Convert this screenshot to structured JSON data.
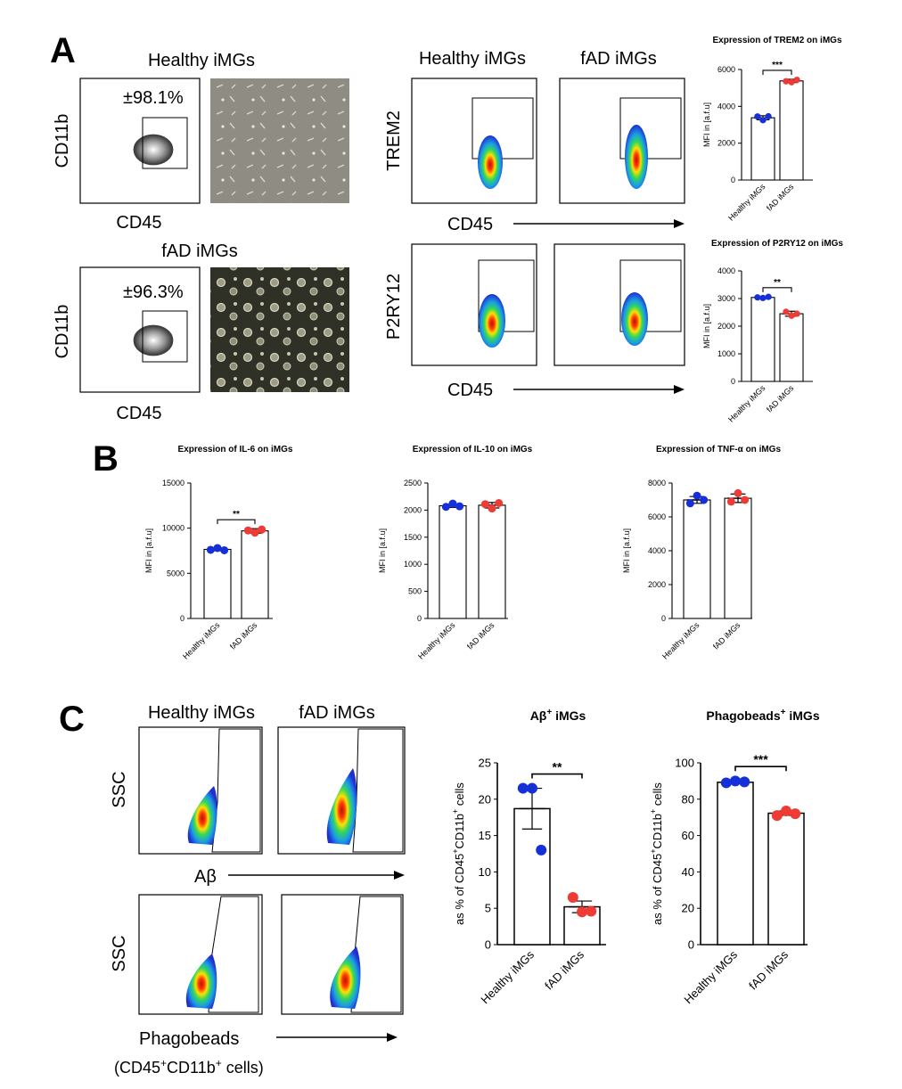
{
  "panels": {
    "a": "A",
    "b": "B",
    "c": "C"
  },
  "colors": {
    "healthy": "#1530d8",
    "fad": "#ee3b35"
  },
  "images": {
    "healthy_micrograph": "microscopy-healthy",
    "fad_micrograph": "microscopy-fad"
  },
  "panel_a": {
    "healthy_title": "Healthy iMGs",
    "fad_title": "fAD iMGs",
    "cd11b_label": "CD11b",
    "cd45_label": "CD45",
    "healthy_gate_pct": "±98.1%",
    "fad_gate_pct": "±96.3%",
    "flow_col_healthy": "Healthy iMGs",
    "flow_col_fad": "fAD iMGs",
    "trem2_label": "TREM2",
    "p2ry12_label": "P2RY12",
    "cd45_arrow_label_1": "CD45",
    "cd45_arrow_label_2": "CD45"
  },
  "panel_c": {
    "healthy_title": "Healthy iMGs",
    "fad_title": "fAD iMGs",
    "ssc_label_1": "SSC",
    "ssc_label_2": "SSC",
    "abeta_label": "Aβ",
    "phago_label": "Phagobeads",
    "gate_note": "(CD45+CD11b+ cells)"
  },
  "chart_data": [
    {
      "id": "trem2",
      "type": "bar",
      "title": "Expression of TREM2 on iMGs",
      "ylabel": "MFI in [a.f.u]",
      "categories": [
        "Healthy iMGs",
        "fAD iMGs"
      ],
      "values": [
        3380,
        5380
      ],
      "errors": [
        110,
        90
      ],
      "points": [
        [
          3450,
          3250,
          3460
        ],
        [
          5360,
          5310,
          5440
        ]
      ],
      "ylim": [
        0,
        6000
      ],
      "yticks": [
        "0",
        "2000",
        "4000",
        "6000"
      ],
      "significance": "***"
    },
    {
      "id": "p2ry12",
      "type": "bar",
      "title": "Expression of P2RY12 on iMGs",
      "ylabel": "MFI in [a.f.u]",
      "categories": [
        "Healthy iMGs",
        "fAD iMGs"
      ],
      "values": [
        3040,
        2450
      ],
      "errors": [
        30,
        90
      ],
      "points": [
        [
          3040,
          3020,
          3060
        ],
        [
          2520,
          2380,
          2450
        ]
      ],
      "ylim": [
        0,
        4000
      ],
      "yticks": [
        "0",
        "1000",
        "2000",
        "3000",
        "4000"
      ],
      "significance": "**"
    },
    {
      "id": "il6",
      "type": "bar",
      "title": "Expression of IL-6 on iMGs",
      "ylabel": "MFI in [a.f.u]",
      "categories": [
        "Healthy iMGs",
        "fAD iMGs"
      ],
      "values": [
        7650,
        9700
      ],
      "errors": [
        150,
        250
      ],
      "points": [
        [
          7600,
          7800,
          7550
        ],
        [
          9750,
          9500,
          9850
        ]
      ],
      "ylim": [
        0,
        15000
      ],
      "yticks": [
        "0",
        "5000",
        "10000",
        "15000"
      ],
      "significance": "**"
    },
    {
      "id": "il10",
      "type": "bar",
      "title": "Expression of IL-10 on iMGs",
      "ylabel": "MFI in [a.f.u]",
      "categories": [
        "Healthy iMGs",
        "fAD iMGs"
      ],
      "values": [
        2080,
        2090
      ],
      "errors": [
        30,
        50
      ],
      "points": [
        [
          2060,
          2120,
          2070
        ],
        [
          2110,
          2030,
          2130
        ]
      ],
      "ylim": [
        0,
        2500
      ],
      "yticks": [
        "0",
        "500",
        "1000",
        "1500",
        "2000",
        "2500"
      ],
      "significance": ""
    },
    {
      "id": "tnfa",
      "type": "bar",
      "title": "Expression of TNF-α on iMGs",
      "ylabel": "MFI in [a.f.u]",
      "categories": [
        "Healthy iMGs",
        "fAD iMGs"
      ],
      "values": [
        7000,
        7100
      ],
      "errors": [
        200,
        250
      ],
      "points": [
        [
          6800,
          7250,
          7000
        ],
        [
          6900,
          7400,
          7000
        ]
      ],
      "ylim": [
        0,
        8000
      ],
      "yticks": [
        "0",
        "2000",
        "4000",
        "6000",
        "8000"
      ],
      "significance": ""
    },
    {
      "id": "abeta",
      "type": "bar",
      "title": "Aβ+ iMGs",
      "ylabel": "as % of CD45+CD11b+ cells",
      "categories": [
        "Healthy iMGs",
        "fAD iMGs"
      ],
      "values": [
        18.7,
        5.2
      ],
      "errors": [
        2.8,
        0.8
      ],
      "points": [
        [
          21.5,
          21.5,
          13.0
        ],
        [
          6.5,
          4.5,
          4.6
        ]
      ],
      "ylim": [
        0,
        25
      ],
      "yticks": [
        "0",
        "5",
        "10",
        "15",
        "20",
        "25"
      ],
      "significance": "**"
    },
    {
      "id": "phago",
      "type": "bar",
      "title": "Phagobeads+ iMGs",
      "ylabel": "as % of CD45+CD11b+ cells",
      "categories": [
        "Healthy iMGs",
        "fAD iMGs"
      ],
      "values": [
        89.3,
        72.3
      ],
      "errors": [
        0.8,
        1.2
      ],
      "points": [
        [
          89,
          90,
          89.5
        ],
        [
          71,
          73.5,
          72
        ]
      ],
      "ylim": [
        0,
        100
      ],
      "yticks": [
        "0",
        "20",
        "40",
        "60",
        "80",
        "100"
      ],
      "significance": "***"
    }
  ]
}
